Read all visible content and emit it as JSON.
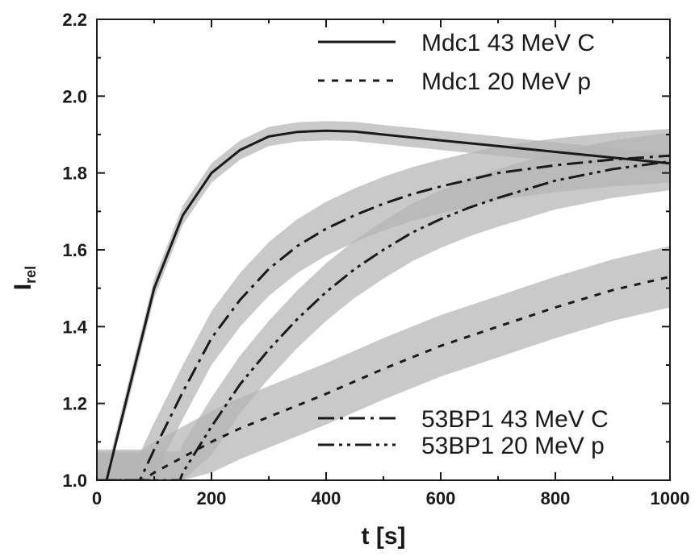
{
  "chart_data": {
    "type": "line",
    "xlabel": "t [s]",
    "ylabel_main": "I",
    "ylabel_sub": "rel",
    "xlim": [
      0,
      1000
    ],
    "ylim": [
      1.0,
      2.2
    ],
    "x_ticks": [
      0,
      200,
      400,
      600,
      800,
      1000
    ],
    "x_tick_labels": [
      "0",
      "200",
      "400",
      "600",
      "800",
      "1000"
    ],
    "y_ticks": [
      1.0,
      1.2,
      1.4,
      1.6,
      1.8,
      2.0,
      2.2
    ],
    "y_tick_labels": [
      "1.0",
      "1.2",
      "1.4",
      "1.6",
      "1.8",
      "2.0",
      "2.2"
    ],
    "legend_top": [
      "Mdc1 43 MeV C",
      "Mdc1 20 MeV p"
    ],
    "legend_bottom": [
      "53BP1 43 MeV C",
      "53BP1 20 MeV p"
    ],
    "line_color": "#1a1a1a",
    "band_color": "#b4b4b4",
    "series": [
      {
        "name": "Mdc1 43 MeV C",
        "style": "solid",
        "x": [
          0,
          17,
          50,
          100,
          150,
          200,
          250,
          300,
          350,
          400,
          450,
          500,
          600,
          700,
          800,
          900,
          1000
        ],
        "y": [
          1.0,
          1.0,
          1.2,
          1.5,
          1.69,
          1.8,
          1.86,
          1.895,
          1.907,
          1.91,
          1.908,
          1.9,
          1.885,
          1.87,
          1.855,
          1.84,
          1.825
        ],
        "band_halfwidth": 0.025
      },
      {
        "name": "Mdc1 20 MeV p",
        "style": "dash",
        "x": [
          0,
          80,
          100,
          150,
          200,
          250,
          300,
          400,
          500,
          600,
          700,
          800,
          900,
          1000
        ],
        "y": [
          1.0,
          1.0,
          1.02,
          1.06,
          1.1,
          1.135,
          1.165,
          1.225,
          1.29,
          1.35,
          1.4,
          1.45,
          1.495,
          1.53
        ],
        "band_halfwidth": 0.08
      },
      {
        "name": "53BP1 43 MeV C",
        "style": "dashdot",
        "x": [
          0,
          75,
          100,
          150,
          200,
          250,
          300,
          350,
          400,
          450,
          500,
          550,
          600,
          700,
          800,
          900,
          1000
        ],
        "y": [
          1.0,
          1.0,
          1.08,
          1.23,
          1.37,
          1.47,
          1.55,
          1.61,
          1.655,
          1.69,
          1.72,
          1.745,
          1.765,
          1.8,
          1.82,
          1.835,
          1.845
        ],
        "band_halfwidth": 0.07
      },
      {
        "name": "53BP1 20 MeV p",
        "style": "dashdotdot",
        "x": [
          0,
          145,
          150,
          200,
          250,
          300,
          350,
          400,
          450,
          500,
          550,
          600,
          650,
          700,
          800,
          900,
          1000
        ],
        "y": [
          1.0,
          1.0,
          1.02,
          1.14,
          1.25,
          1.34,
          1.42,
          1.49,
          1.55,
          1.6,
          1.645,
          1.68,
          1.71,
          1.735,
          1.78,
          1.81,
          1.83
        ],
        "band_halfwidth": 0.075
      }
    ]
  }
}
